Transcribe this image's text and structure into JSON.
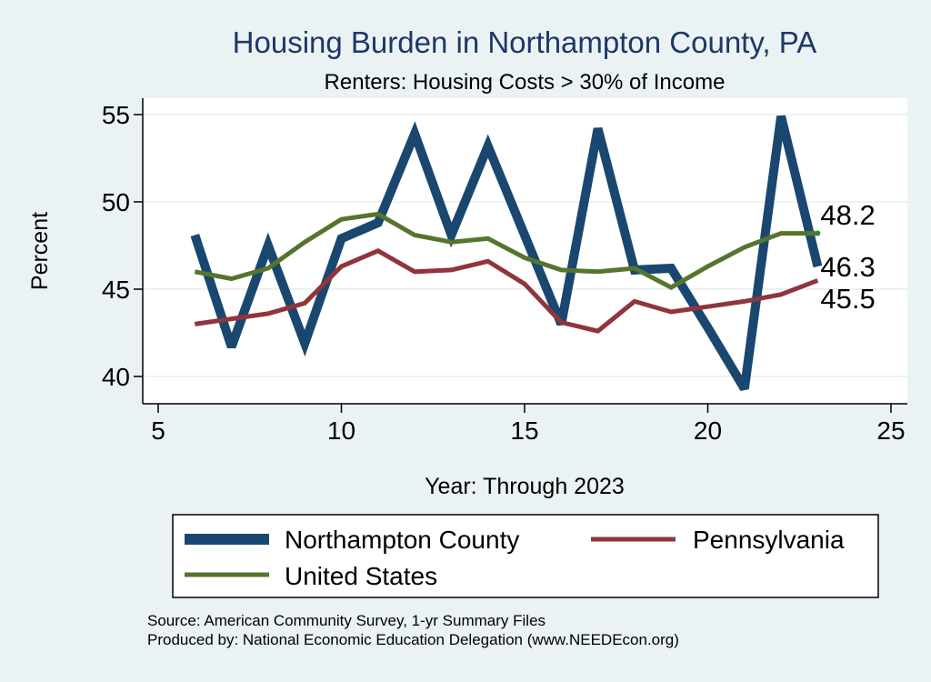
{
  "chart_data": {
    "type": "line",
    "title": "Housing Burden in Northampton County, PA",
    "subtitle": "Renters: Housing Costs > 30% of Income",
    "xlabel": "Year: Through 2023",
    "ylabel": "Percent",
    "xlim": [
      5,
      25
    ],
    "ylim": [
      39,
      55.5
    ],
    "x_ticks": [
      5,
      10,
      15,
      20,
      25
    ],
    "y_ticks": [
      40,
      45,
      50,
      55
    ],
    "grid": true,
    "legend_position": "bottom",
    "x": [
      6,
      7,
      8,
      9,
      10,
      11,
      12,
      13,
      14,
      15,
      16,
      17,
      18,
      19,
      20,
      21,
      22,
      23
    ],
    "series": [
      {
        "name": "Northampton County",
        "color": "#1a476f",
        "values": [
          48.1,
          41.7,
          47.5,
          41.9,
          47.9,
          48.8,
          53.9,
          48.1,
          53.2,
          48.1,
          43.0,
          54.2,
          46.1,
          46.2,
          42.8,
          39.3,
          54.9,
          46.3
        ]
      },
      {
        "name": "Pennsylvania",
        "color": "#90353b",
        "values": [
          43.0,
          43.3,
          43.6,
          44.2,
          46.3,
          47.2,
          46.0,
          46.1,
          46.6,
          45.3,
          43.1,
          42.6,
          44.3,
          43.7,
          44.0,
          44.3,
          44.7,
          45.5
        ]
      },
      {
        "name": "United States",
        "color": "#55752f",
        "values": [
          46.0,
          45.6,
          46.2,
          47.7,
          49.0,
          49.3,
          48.1,
          47.7,
          47.9,
          46.8,
          46.1,
          46.0,
          46.2,
          45.1,
          46.3,
          47.4,
          48.2,
          48.2
        ]
      }
    ],
    "end_labels": [
      {
        "text": "48.2",
        "series": "United States"
      },
      {
        "text": "46.3",
        "series": "Northampton County"
      },
      {
        "text": "45.5",
        "series": "Pennsylvania"
      }
    ]
  },
  "legend": {
    "items": [
      {
        "label": "Northampton County",
        "color": "#1a476f"
      },
      {
        "label": "Pennsylvania",
        "color": "#90353b"
      },
      {
        "label": "United States",
        "color": "#55752f"
      }
    ]
  },
  "notes": {
    "source": "Source: American Community Survey, 1-yr Summary Files",
    "producer": "Produced by: National Economic Education Delegation (www.NEEDEcon.org)"
  }
}
